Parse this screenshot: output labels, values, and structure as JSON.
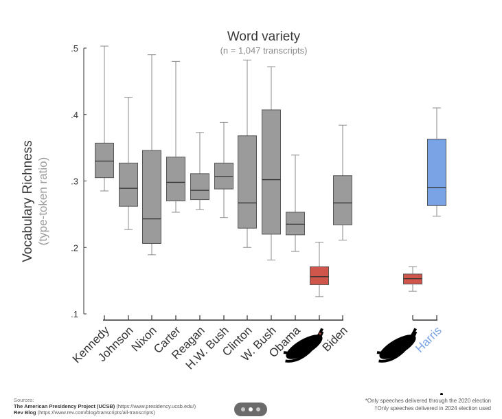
{
  "chart_data": {
    "type": "box",
    "title": "Word variety",
    "subtitle": "(n = 1,047 transcripts)",
    "ylabel": "Vocabulary Richness",
    "ylabel_sub": "(type-token ratio)",
    "ylim": [
      0.1,
      0.5
    ],
    "yticks": [
      {
        "value": 0.5,
        "label": ".5"
      },
      {
        "value": 0.4,
        "label": ".4"
      },
      {
        "value": 0.3,
        "label": ".3"
      },
      {
        "value": 0.2,
        "label": ".2"
      },
      {
        "value": 0.1,
        "label": ".1"
      }
    ],
    "colors": {
      "gray": "#9b9b9b",
      "red": "#d0554a",
      "blue": "#7aa3e5",
      "edge": "#555555"
    },
    "series": [
      {
        "name": "Kennedy",
        "min": 0.285,
        "q1": 0.305,
        "median": 0.33,
        "q3": 0.357,
        "max": 0.503,
        "color": "gray"
      },
      {
        "name": "Johnson",
        "min": 0.227,
        "q1": 0.262,
        "median": 0.289,
        "q3": 0.327,
        "max": 0.426,
        "color": "gray"
      },
      {
        "name": "Nixon",
        "min": 0.189,
        "q1": 0.206,
        "median": 0.243,
        "q3": 0.346,
        "max": 0.49,
        "color": "gray"
      },
      {
        "name": "Carter",
        "min": 0.253,
        "q1": 0.27,
        "median": 0.298,
        "q3": 0.336,
        "max": 0.48,
        "color": "gray"
      },
      {
        "name": "Reagan",
        "min": 0.257,
        "q1": 0.272,
        "median": 0.286,
        "q3": 0.311,
        "max": 0.373,
        "color": "gray"
      },
      {
        "name": "H.W. Bush",
        "min": 0.245,
        "q1": 0.288,
        "median": 0.307,
        "q3": 0.327,
        "max": 0.388,
        "color": "gray"
      },
      {
        "name": "Clinton",
        "min": 0.2,
        "q1": 0.229,
        "median": 0.267,
        "q3": 0.368,
        "max": 0.482,
        "color": "gray"
      },
      {
        "name": "W. Bush",
        "min": 0.181,
        "q1": 0.22,
        "median": 0.302,
        "q3": 0.407,
        "max": 0.472,
        "color": "gray"
      },
      {
        "name": "Obama",
        "min": 0.194,
        "q1": 0.219,
        "median": 0.235,
        "q3": 0.253,
        "max": 0.339,
        "color": "gray"
      },
      {
        "name": "",
        "min": 0.126,
        "q1": 0.144,
        "median": 0.156,
        "q3": 0.171,
        "max": 0.208,
        "color": "red",
        "redacted": true,
        "marker": "*"
      },
      {
        "name": "Biden",
        "min": 0.211,
        "q1": 0.234,
        "median": 0.267,
        "q3": 0.308,
        "max": 0.384,
        "color": "gray"
      },
      {
        "name": "",
        "min": 0.134,
        "q1": 0.145,
        "median": 0.153,
        "q3": 0.16,
        "max": 0.171,
        "color": "red",
        "redacted": true
      },
      {
        "name": "Harris",
        "min": 0.247,
        "q1": 0.263,
        "median": 0.29,
        "q3": 0.363,
        "max": 0.41,
        "color": "blue",
        "label_color": "blue"
      }
    ]
  },
  "footer": {
    "sources_heading": "Sources:",
    "source1_name": "The American Presidency Project (UCSB)",
    "source1_url": "(https://www.presidency.ucsb.edu/)",
    "source2_name": "Rev Blog",
    "source2_url": "(https://www.rev.com/blog/transcripts/all-transcripts)",
    "note1": "*Only speeches delivered through the 2020 election",
    "note2": "†Only speeches delivered in 2024 election used"
  }
}
